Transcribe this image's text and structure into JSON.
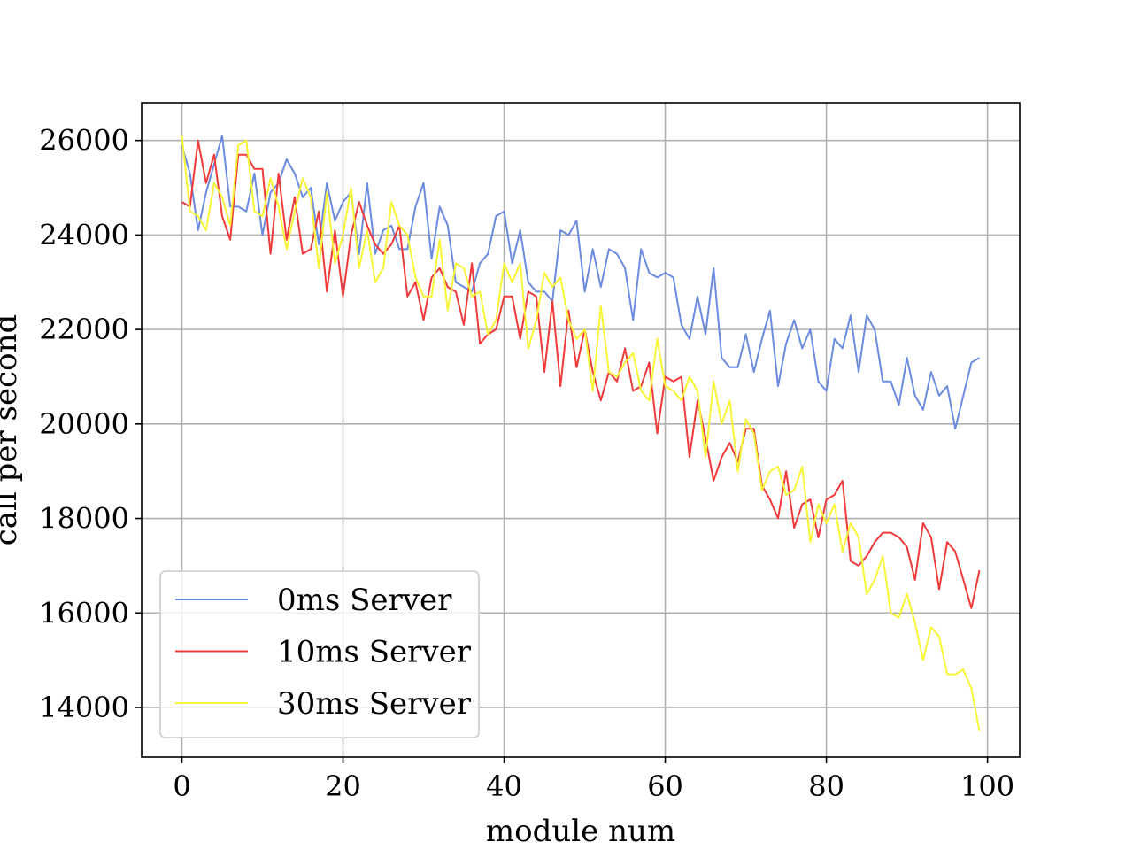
{
  "chart_data": {
    "type": "line",
    "title": "",
    "xlabel": "module num",
    "ylabel": "call per second",
    "xlim": [
      -5,
      104
    ],
    "ylim": [
      12950,
      26800
    ],
    "xticks": [
      0,
      20,
      40,
      60,
      80,
      100
    ],
    "yticks": [
      14000,
      16000,
      18000,
      20000,
      22000,
      24000,
      26000
    ],
    "grid": true,
    "legend_position": "lower-left",
    "series": [
      {
        "name": "0ms Server",
        "color": "#6b8bdf",
        "values": [
          25900,
          25300,
          24100,
          24900,
          25500,
          26100,
          24600,
          24600,
          24500,
          25300,
          24000,
          24900,
          25100,
          25600,
          25300,
          24800,
          25000,
          23800,
          25100,
          24300,
          24700,
          24900,
          23600,
          25100,
          23600,
          24100,
          24200,
          23700,
          23700,
          24600,
          25100,
          23500,
          24600,
          24200,
          23000,
          22900,
          22800,
          23400,
          23600,
          24400,
          24500,
          23400,
          24100,
          23000,
          22800,
          22800,
          22600,
          24100,
          24000,
          24300,
          22800,
          23700,
          22900,
          23700,
          23600,
          23300,
          22200,
          23700,
          23200,
          23100,
          23200,
          23100,
          22100,
          21800,
          22700,
          21900,
          23300,
          21400,
          21200,
          21200,
          21900,
          21100,
          21800,
          22400,
          20800,
          21700,
          22200,
          21600,
          22000,
          20900,
          20700,
          21800,
          21600,
          22300,
          21100,
          22300,
          22000,
          20900,
          20900,
          20400,
          21400,
          20600,
          20300,
          21100,
          20600,
          20800,
          19900,
          20600,
          21300,
          21400
        ]
      },
      {
        "name": "10ms Server",
        "color": "#f03a3a",
        "values": [
          24700,
          24600,
          26000,
          25100,
          25700,
          24400,
          23900,
          25700,
          25700,
          25400,
          25400,
          23600,
          25300,
          23900,
          24800,
          23600,
          23700,
          24500,
          22800,
          24100,
          22700,
          24000,
          24700,
          24200,
          23800,
          23600,
          23800,
          24200,
          22700,
          23000,
          22200,
          23100,
          23300,
          22900,
          22800,
          22100,
          23400,
          21700,
          21900,
          22000,
          22700,
          22700,
          21800,
          22800,
          22700,
          21100,
          22600,
          20800,
          22400,
          21200,
          22000,
          21100,
          20500,
          21100,
          20900,
          21600,
          20700,
          20800,
          21300,
          19800,
          21000,
          20900,
          21000,
          19300,
          20500,
          19700,
          18800,
          19300,
          19600,
          19200,
          19900,
          19900,
          18700,
          18400,
          18000,
          19000,
          17800,
          18300,
          18400,
          17600,
          18400,
          18500,
          18800,
          17100,
          17000,
          17200,
          17500,
          17700,
          17700,
          17600,
          17400,
          16700,
          17900,
          17600,
          16500,
          17500,
          17300,
          16700,
          16100,
          16900
        ]
      },
      {
        "name": "30ms Server",
        "color": "#f8f536",
        "values": [
          26100,
          24500,
          24400,
          24100,
          25100,
          24800,
          24200,
          25900,
          26000,
          24500,
          24400,
          25200,
          24600,
          23700,
          24500,
          25200,
          24800,
          23300,
          24900,
          23400,
          24000,
          25000,
          23300,
          24100,
          23000,
          23300,
          24700,
          24200,
          24000,
          23100,
          22700,
          22700,
          23900,
          22400,
          23400,
          23300,
          22700,
          22800,
          21900,
          22200,
          23400,
          23000,
          23400,
          21600,
          22200,
          23200,
          22900,
          23100,
          22200,
          21800,
          22000,
          20700,
          22500,
          21100,
          21000,
          21300,
          21500,
          20700,
          20500,
          21800,
          20800,
          20700,
          20500,
          21000,
          20700,
          19300,
          20900,
          20000,
          20500,
          19000,
          20100,
          19800,
          18600,
          19000,
          19100,
          18500,
          18600,
          19100,
          17500,
          18300,
          17900,
          18300,
          17300,
          17900,
          17600,
          16400,
          16700,
          17200,
          16000,
          15900,
          16400,
          15800,
          15000,
          15700,
          15500,
          14700,
          14700,
          14800,
          14400,
          13500
        ]
      }
    ]
  }
}
